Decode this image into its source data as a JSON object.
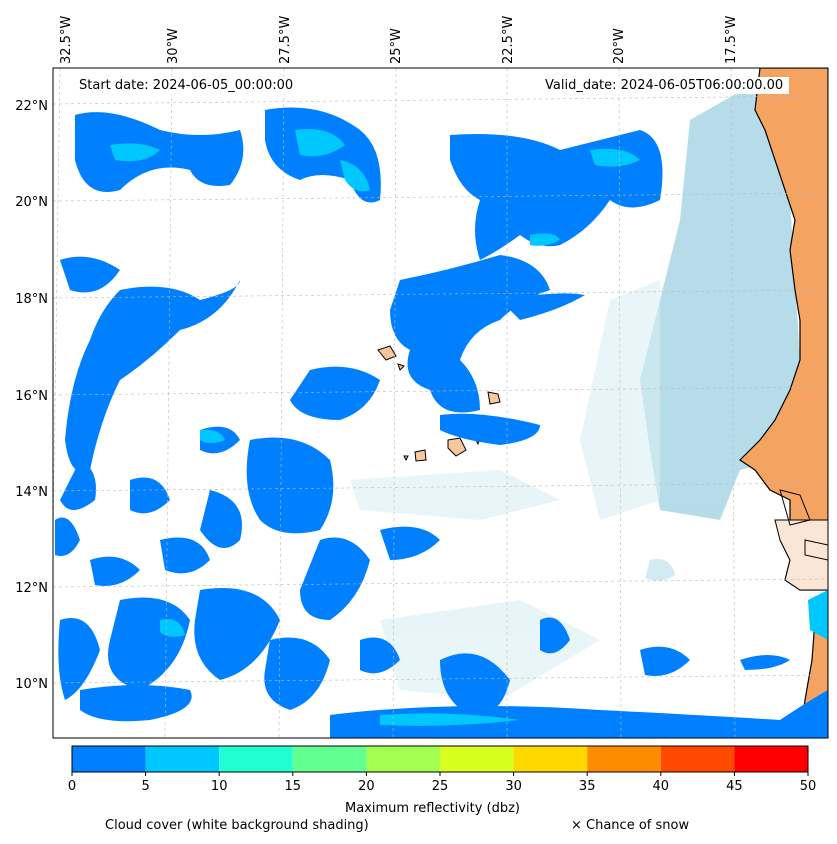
{
  "map": {
    "start_date": "Start date: 2024-06-05_00:00:00",
    "valid_date": "Valid_date: 2024-06-05T06:00:00.00",
    "lon_labels": [
      "32.5°W",
      "30°W",
      "27.5°W",
      "25°W",
      "22.5°W",
      "20°W",
      "17.5°W"
    ],
    "lat_labels": [
      "22°N",
      "20°N",
      "18°N",
      "16°N",
      "14°N",
      "12°N",
      "10°N"
    ],
    "colors": {
      "ocean": "#ffffff",
      "land": "#f4a460",
      "cloud_shading": "#add8e6",
      "coastline": "#000000"
    }
  },
  "colorbar": {
    "title": "Maximum reflectivity (dbz)",
    "ticks": [
      "0",
      "5",
      "10",
      "15",
      "20",
      "25",
      "30",
      "35",
      "40",
      "45",
      "50"
    ],
    "colors": [
      "#0080ff",
      "#00c8ff",
      "#20ffd0",
      "#60ff90",
      "#a0ff50",
      "#d8ff20",
      "#ffd800",
      "#ff8c00",
      "#ff4800",
      "#ff0000"
    ]
  },
  "legend": {
    "cloud_cover": "Cloud cover (white background shading)",
    "snow": "× Chance of snow"
  }
}
